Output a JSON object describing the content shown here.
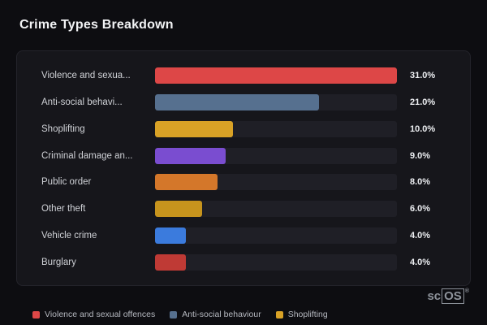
{
  "title": "Crime Types Breakdown",
  "watermark": {
    "prefix": "sc",
    "boxed": "OS",
    "reg": "®"
  },
  "chart_data": {
    "type": "bar",
    "orientation": "horizontal",
    "title": "Crime Types Breakdown",
    "xlabel": "",
    "ylabel": "",
    "max_value": 31,
    "grid": false,
    "legend_position": "bottom",
    "track_color": "#1f1f26",
    "categories": [
      "Violence and sexua...",
      "Anti-social behavi...",
      "Shoplifting",
      "Criminal damage an...",
      "Public order",
      "Other theft",
      "Vehicle crime",
      "Burglary"
    ],
    "values": [
      31.0,
      21.0,
      10.0,
      9.0,
      8.0,
      6.0,
      4.0,
      4.0
    ],
    "value_labels": [
      "31.0%",
      "21.0%",
      "10.0%",
      "9.0%",
      "8.0%",
      "6.0%",
      "4.0%",
      "4.0%"
    ],
    "bar_colors": [
      "#dd4747",
      "#56708f",
      "#d9a226",
      "#7a4dd0",
      "#d4772a",
      "#c7941d",
      "#3b7bdd",
      "#bf3a35"
    ]
  },
  "legend": {
    "items": [
      {
        "label": "Violence and sexual offences",
        "color": "#dd4747"
      },
      {
        "label": "Anti-social behaviour",
        "color": "#56708f"
      },
      {
        "label": "Shoplifting",
        "color": "#d9a226"
      }
    ]
  }
}
